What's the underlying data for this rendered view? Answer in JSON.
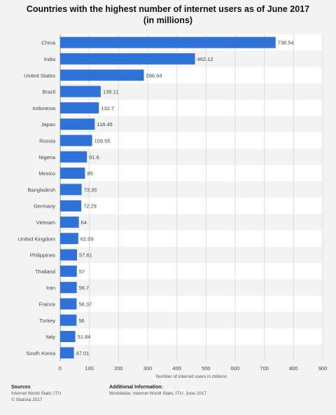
{
  "chart_data": {
    "type": "bar",
    "orientation": "horizontal",
    "title": "Countries with the highest number of internet users as of June 2017",
    "subtitle": "(in millions)",
    "categories": [
      "China",
      "India",
      "United States",
      "Brazil",
      "Indonesia",
      "Japan",
      "Russia",
      "Nigeria",
      "Mexico",
      "Bangladesh",
      "Germany",
      "Vietnam",
      "United Kingdom",
      "Philippines",
      "Thailand",
      "Iran",
      "France",
      "Turkey",
      "Italy",
      "South Korea"
    ],
    "values": [
      738.54,
      462.12,
      286.94,
      139.11,
      132.7,
      118.45,
      109.55,
      91.6,
      85,
      73.35,
      72.29,
      64,
      62.09,
      57.61,
      57,
      56.7,
      56.37,
      56,
      51.84,
      47.01
    ],
    "value_labels": [
      "738.54",
      "462.12",
      "286.94",
      "139.11",
      "132.7",
      "118.45",
      "109.55",
      "91.6",
      "85",
      "73.35",
      "72.29",
      "64",
      "62.09",
      "57.61",
      "57",
      "56.7",
      "56.37",
      "56",
      "51.84",
      "47.01"
    ],
    "xlabel": "Number of internet users in millions",
    "ylabel": "",
    "xlim": [
      0,
      900
    ],
    "xticks": [
      0,
      100,
      200,
      300,
      400,
      500,
      600,
      700,
      800,
      900
    ],
    "grid": true,
    "bar_color": "#2f73d9"
  },
  "footer": {
    "sources_heading": "Sources",
    "sources_line1": "Internet World Stats; ITU",
    "sources_line2": "© Statista 2017",
    "info_heading": "Additional Information:",
    "info_line1": "Worldwide; Internet World Stats; ITU; June 2017"
  }
}
